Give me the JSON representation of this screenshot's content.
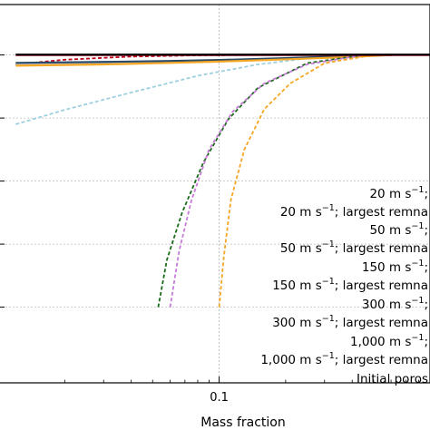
{
  "chart_data": {
    "type": "line",
    "xlabel": "Mass fraction",
    "xscale": "log",
    "x_tick_labels": [
      "0.1"
    ],
    "legend_placement": "bottom-right",
    "legend_entries_visible": [
      {
        "prefix": "20 m s",
        "sup": "−1",
        "suffix": ";"
      },
      {
        "prefix": "20 m s",
        "sup": "−1",
        "suffix": "; largest remna"
      },
      {
        "prefix": "50 m s",
        "sup": "−1",
        "suffix": ";"
      },
      {
        "prefix": "50 m s",
        "sup": "−1",
        "suffix": "; largest remna"
      },
      {
        "prefix": "150 m s",
        "sup": "−1",
        "suffix": ";"
      },
      {
        "prefix": "150 m s",
        "sup": "−1",
        "suffix": "; largest remna"
      },
      {
        "prefix": "300 m s",
        "sup": "−1",
        "suffix": ";"
      },
      {
        "prefix": "300 m s",
        "sup": "−1",
        "suffix": "; largest remna"
      },
      {
        "prefix": "1,000 m s",
        "sup": "−1",
        "suffix": ";"
      },
      {
        "prefix": "1,000 m s",
        "sup": "−1",
        "suffix": "; largest remna"
      },
      {
        "prefix": "Initial poros",
        "sup": "",
        "suffix": ""
      }
    ],
    "series": [
      {
        "color": "#c0001a",
        "dash": "solid",
        "x": [
          0.012,
          0.05,
          0.1,
          0.3,
          0.5,
          0.9
        ],
        "y": [
          0.8,
          0.8,
          0.8,
          0.8,
          0.8,
          0.8
        ]
      },
      {
        "color": "#000000",
        "dash": "solid",
        "x": [
          0.012,
          0.05,
          0.1,
          0.3,
          0.5,
          0.9
        ],
        "y": [
          0.801,
          0.801,
          0.801,
          0.801,
          0.801,
          0.801
        ]
      },
      {
        "color": "#c0001a",
        "dash": "dashed",
        "x": [
          0.012,
          0.02,
          0.04,
          0.08,
          0.15,
          0.3,
          0.5
        ],
        "y": [
          0.77,
          0.785,
          0.795,
          0.799,
          0.8,
          0.8,
          0.8
        ]
      },
      {
        "color": "#2b4a66",
        "dash": "solid",
        "x": [
          0.012,
          0.03,
          0.06,
          0.1,
          0.2,
          0.4,
          0.6
        ],
        "y": [
          0.775,
          0.778,
          0.781,
          0.784,
          0.79,
          0.797,
          0.8
        ]
      },
      {
        "color": "#c8c8d4",
        "dash": "solid",
        "x": [
          0.012,
          0.03,
          0.06,
          0.1,
          0.2,
          0.4,
          0.6
        ],
        "y": [
          0.77,
          0.774,
          0.779,
          0.783,
          0.789,
          0.796,
          0.8
        ]
      },
      {
        "color": "#f5a623",
        "dash": "solid",
        "x": [
          0.012,
          0.03,
          0.06,
          0.1,
          0.2,
          0.4,
          0.6
        ],
        "y": [
          0.766,
          0.77,
          0.775,
          0.779,
          0.786,
          0.794,
          0.8
        ]
      },
      {
        "color": "#9ecfe0",
        "dash": "dashed",
        "x": [
          0.012,
          0.02,
          0.04,
          0.08,
          0.15,
          0.3,
          0.5
        ],
        "y": [
          0.58,
          0.626,
          0.681,
          0.734,
          0.77,
          0.796,
          0.8
        ]
      },
      {
        "color": "#1a6b1a",
        "dash": "dashed",
        "x": [
          0.053,
          0.058,
          0.068,
          0.085,
          0.11,
          0.15,
          0.25,
          0.45
        ],
        "y": [
          0.0,
          0.15,
          0.3,
          0.46,
          0.596,
          0.696,
          0.774,
          0.8
        ]
      },
      {
        "color": "#c77bd9",
        "dash": "dashed",
        "x": [
          0.06,
          0.066,
          0.075,
          0.09,
          0.115,
          0.16,
          0.25,
          0.45
        ],
        "y": [
          0.0,
          0.18,
          0.34,
          0.5,
          0.62,
          0.71,
          0.77,
          0.8
        ]
      },
      {
        "color": "#f5a623",
        "dash": "dashed",
        "x": [
          0.1,
          0.105,
          0.113,
          0.13,
          0.16,
          0.21,
          0.3,
          0.5
        ],
        "y": [
          0.0,
          0.16,
          0.34,
          0.5,
          0.628,
          0.71,
          0.774,
          0.8
        ]
      }
    ]
  }
}
